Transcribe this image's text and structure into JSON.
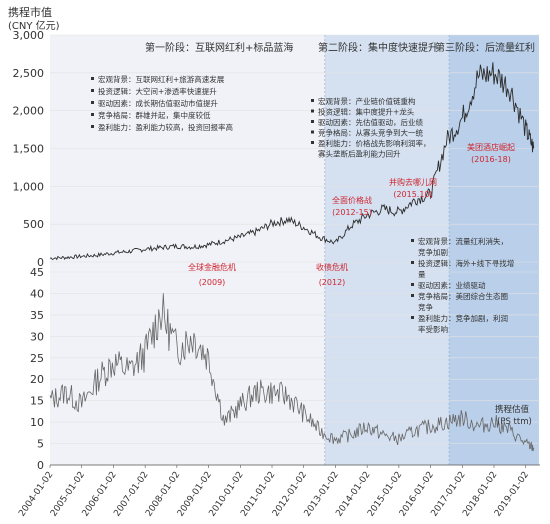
{
  "chart_data": [
    {
      "type": "line",
      "ylabel": "携程市值",
      "yunit": "(CNY 亿元)",
      "ylim": [
        0,
        3000
      ],
      "yticks": [
        "0",
        "500",
        "1,000",
        "1,500",
        "2,000",
        "2,500",
        "3,000"
      ],
      "series": [
        {
          "x": [
            "2004-01",
            "2004-07",
            "2005-01",
            "2005-07",
            "2006-01",
            "2006-07",
            "2007-01",
            "2007-07",
            "2008-01",
            "2008-07",
            "2009-01",
            "2009-07",
            "2010-01",
            "2010-07",
            "2011-01",
            "2011-07",
            "2012-01",
            "2012-07",
            "2013-01",
            "2013-07",
            "2014-01",
            "2014-07",
            "2015-01",
            "2015-07",
            "2016-01",
            "2016-07",
            "2017-01",
            "2017-07",
            "2018-01",
            "2018-07",
            "2019-01",
            "2019-04"
          ],
          "y": [
            50,
            60,
            75,
            90,
            120,
            140,
            170,
            190,
            210,
            200,
            230,
            280,
            330,
            400,
            510,
            560,
            460,
            330,
            250,
            480,
            620,
            700,
            660,
            820,
            900,
            1600,
            1900,
            2450,
            2500,
            2300,
            1750,
            1500
          ]
        }
      ],
      "phases": [
        {
          "label": "第一阶段：互联网红利+标品蓝海",
          "start": "2004-01",
          "end": "2012-09",
          "color": "#f1f2f8"
        },
        {
          "label": "第二阶段：集中度快速提升",
          "start": "2012-09",
          "end": "2016-08",
          "color": "#d5e1f1"
        },
        {
          "label": "第三阶段：后流量红利",
          "start": "2016-08",
          "end": "2019-06",
          "color": "#b9cfea"
        }
      ],
      "phase_notes": [
        {
          "lines": [
            "宏观背景：互联网红利+旅游高速发展",
            "投资逻辑：大空间+渗透率快速提升",
            "驱动因素：成长期估值驱动市值提升",
            "竞争格局：群雄并起，集中度较低",
            "盈利能力：盈利能力较高，投资回报率高"
          ]
        },
        {
          "lines": [
            "宏观背景：产业链价值链重构",
            "投资逻辑：集中度提升+龙头",
            "驱动因素：先估值驱动，后业绩",
            "竞争格局：从寡头竞争到大一统",
            "盈利能力：价格战先影响利润率，",
            "寡头垄断后盈利能力回升"
          ]
        },
        {
          "lines": [
            "宏观背景：流量红利消失，",
            "竞争加剧",
            "投资逻辑：海外+线下寻找增",
            "量",
            "驱动因素：业绩驱动",
            "竞争格局：美团综合生态圈",
            "竞争",
            "盈利能力：竞争加剧，利润",
            "率受影响"
          ]
        }
      ],
      "events": [
        {
          "label": "全球金融危机",
          "sub": "(2009)",
          "color": "#d0262f"
        },
        {
          "label": "收债危机",
          "sub": "(2012)",
          "color": "#d0262f"
        },
        {
          "label": "全面价格战",
          "sub": "(2012-15)",
          "color": "#d0262f"
        },
        {
          "label": "并购去哪儿网",
          "sub": "(2015.10)",
          "color": "#d0262f"
        },
        {
          "label": "美团酒店崛起",
          "sub": "(2016-18)",
          "color": "#d0262f"
        }
      ]
    },
    {
      "type": "line",
      "ylim": [
        0,
        45
      ],
      "yticks": [
        "0",
        "5",
        "10",
        "15",
        "20",
        "25",
        "30",
        "35",
        "40",
        "45"
      ],
      "xticks": [
        "2004-01-02",
        "2005-01-02",
        "2006-01-02",
        "2007-01-02",
        "2008-01-02",
        "2009-01-02",
        "2010-01-02",
        "2011-01-02",
        "2012-01-02",
        "2013-01-02",
        "2014-01-02",
        "2015-01-02",
        "2016-01-02",
        "2017-01-02",
        "2018-01-02",
        "2019-01-02"
      ],
      "series": [
        {
          "name": "携程估值",
          "note": "(PS ttm)",
          "x": [
            "2004-01",
            "2004-07",
            "2005-01",
            "2005-07",
            "2006-01",
            "2006-07",
            "2007-01",
            "2007-07",
            "2008-01",
            "2008-07",
            "2009-01",
            "2009-07",
            "2010-01",
            "2010-07",
            "2011-01",
            "2011-07",
            "2012-01",
            "2012-07",
            "2013-01",
            "2013-07",
            "2014-01",
            "2014-07",
            "2015-01",
            "2015-07",
            "2016-01",
            "2016-07",
            "2017-01",
            "2017-07",
            "2018-01",
            "2018-07",
            "2019-01",
            "2019-04"
          ],
          "y": [
            15,
            17,
            14,
            20,
            24,
            22,
            26,
            36,
            27,
            30,
            25,
            10,
            14,
            17,
            17,
            16,
            12,
            8,
            6,
            7,
            9,
            7,
            6,
            8,
            9,
            10,
            11,
            9,
            10,
            8,
            5,
            4
          ]
        }
      ]
    }
  ],
  "colors": {
    "line": "#444444",
    "event": "#d0262f",
    "grid": "#e2e2e2"
  }
}
